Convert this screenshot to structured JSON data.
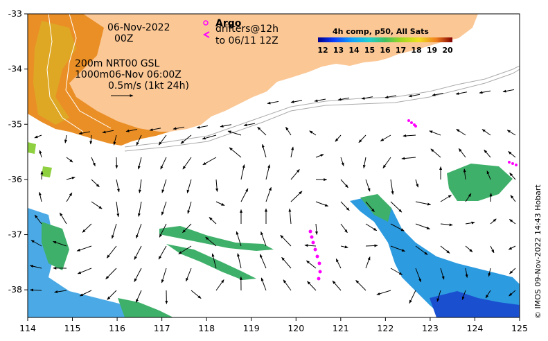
{
  "map": {
    "date_line1": "06-Nov-2022",
    "date_line2": "00Z",
    "depth_line1": "200m  NRT00 GSL",
    "depth_line2": "1000m06-Nov 06:00Z",
    "scale_text": "0.5m/s (1kt 24h)",
    "argo_label": "Argo",
    "drifters_line1": "drifters@12h",
    "drifters_line2": "to 06/11 12Z",
    "colorbar_title": "4h comp, p50, All Sats",
    "colorbar_ticks": [
      "12",
      "13",
      "14",
      "15",
      "16",
      "17",
      "18",
      "19",
      "20"
    ],
    "x_ticks": [
      "114",
      "115",
      "116",
      "117",
      "118",
      "119",
      "120",
      "121",
      "122",
      "123",
      "124",
      "125"
    ],
    "y_ticks": [
      "-33",
      "-34",
      "-35",
      "-36",
      "-37",
      "-38"
    ],
    "credit": "© IMOS 09-Nov-2022 14:43 Hobart",
    "colors": {
      "land": "#fbc795",
      "argo": "#ff00ff",
      "sst_warm": "#e8881a",
      "sst_cool": "#2c9be0",
      "sst_green": "#3fb06a"
    },
    "extent": {
      "lon": [
        114,
        125
      ],
      "lat": [
        -38.5,
        -33
      ]
    }
  }
}
